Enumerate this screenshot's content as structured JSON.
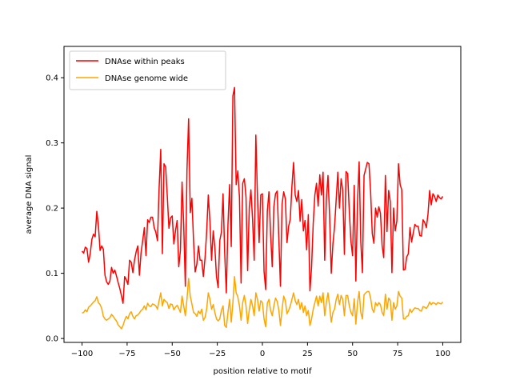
{
  "chart_data": {
    "type": "line",
    "title": "",
    "xlabel": "position relative to motif",
    "ylabel": "average DNA signal",
    "xlim": [
      -110,
      110
    ],
    "ylim": [
      -0.006,
      0.448
    ],
    "xticks": [
      -100,
      -75,
      -50,
      -25,
      0,
      25,
      50,
      75,
      100
    ],
    "yticks": [
      0.0,
      0.1,
      0.2,
      0.3,
      0.4
    ],
    "ytick_labels": [
      "0.0",
      "0.1",
      "0.2",
      "0.3",
      "0.4"
    ],
    "grid": false,
    "legend": "upper left",
    "x_start": -100,
    "x_step": 1,
    "series": [
      {
        "name": "DNAse within peaks",
        "color": "#ff0000",
        "values": [
          0.134,
          0.131,
          0.14,
          0.138,
          0.117,
          0.13,
          0.152,
          0.16,
          0.156,
          0.195,
          0.173,
          0.135,
          0.142,
          0.137,
          0.097,
          0.087,
          0.083,
          0.088,
          0.109,
          0.1,
          0.105,
          0.096,
          0.086,
          0.077,
          0.066,
          0.054,
          0.095,
          0.09,
          0.083,
          0.12,
          0.117,
          0.101,
          0.12,
          0.133,
          0.142,
          0.097,
          0.132,
          0.15,
          0.17,
          0.127,
          0.182,
          0.178,
          0.186,
          0.186,
          0.17,
          0.163,
          0.15,
          0.23,
          0.29,
          0.13,
          0.268,
          0.263,
          0.218,
          0.169,
          0.185,
          0.188,
          0.145,
          0.165,
          0.181,
          0.11,
          0.135,
          0.24,
          0.175,
          0.08,
          0.258,
          0.337,
          0.193,
          0.215,
          0.15,
          0.102,
          0.114,
          0.142,
          0.12,
          0.12,
          0.095,
          0.123,
          0.163,
          0.22,
          0.18,
          0.12,
          0.165,
          0.14,
          0.095,
          0.078,
          0.15,
          0.163,
          0.222,
          0.131,
          0.07,
          0.175,
          0.236,
          0.141,
          0.372,
          0.385,
          0.236,
          0.257,
          0.217,
          0.085,
          0.238,
          0.245,
          0.217,
          0.104,
          0.2,
          0.228,
          0.183,
          0.12,
          0.312,
          0.217,
          0.147,
          0.22,
          0.222,
          0.103,
          0.075,
          0.195,
          0.225,
          0.16,
          0.11,
          0.202,
          0.222,
          0.226,
          0.155,
          0.08,
          0.206,
          0.225,
          0.214,
          0.147,
          0.172,
          0.183,
          0.233,
          0.27,
          0.22,
          0.21,
          0.227,
          0.18,
          0.213,
          0.165,
          0.181,
          0.136,
          0.19,
          0.073,
          0.11,
          0.177,
          0.22,
          0.238,
          0.203,
          0.251,
          0.22,
          0.255,
          0.12,
          0.213,
          0.25,
          0.188,
          0.1,
          0.145,
          0.171,
          0.213,
          0.255,
          0.2,
          0.245,
          0.228,
          0.129,
          0.256,
          0.253,
          0.195,
          0.149,
          0.127,
          0.235,
          0.088,
          0.21,
          0.271,
          0.148,
          0.101,
          0.25,
          0.26,
          0.27,
          0.268,
          0.225,
          0.161,
          0.146,
          0.2,
          0.186,
          0.202,
          0.192,
          0.143,
          0.124,
          0.25,
          0.164,
          0.227,
          0.21,
          0.101,
          0.2,
          0.165,
          0.18,
          0.268,
          0.236,
          0.228,
          0.105,
          0.106,
          0.125,
          0.13,
          0.17,
          0.148,
          0.162,
          0.175,
          0.172,
          0.172,
          0.158,
          0.157,
          0.182,
          0.178,
          0.17,
          0.191,
          0.227,
          0.205,
          0.222,
          0.218,
          0.21,
          0.22,
          0.216,
          0.214,
          0.218
        ],
        "note_x_density": "values are sampled uniformly over the x range [-100, 100]"
      },
      {
        "name": "DNAse genome wide",
        "color": "#ffa500",
        "values": [
          0.039,
          0.04,
          0.044,
          0.041,
          0.048,
          0.05,
          0.053,
          0.056,
          0.058,
          0.064,
          0.055,
          0.052,
          0.046,
          0.034,
          0.03,
          0.028,
          0.03,
          0.032,
          0.037,
          0.034,
          0.03,
          0.027,
          0.021,
          0.018,
          0.015,
          0.02,
          0.028,
          0.034,
          0.03,
          0.038,
          0.041,
          0.034,
          0.03,
          0.035,
          0.036,
          0.039,
          0.043,
          0.045,
          0.05,
          0.044,
          0.054,
          0.05,
          0.049,
          0.053,
          0.052,
          0.05,
          0.045,
          0.058,
          0.07,
          0.05,
          0.06,
          0.057,
          0.055,
          0.046,
          0.053,
          0.052,
          0.044,
          0.048,
          0.051,
          0.046,
          0.04,
          0.065,
          0.05,
          0.035,
          0.06,
          0.092,
          0.065,
          0.053,
          0.04,
          0.038,
          0.034,
          0.042,
          0.038,
          0.045,
          0.028,
          0.032,
          0.045,
          0.07,
          0.06,
          0.045,
          0.052,
          0.04,
          0.03,
          0.027,
          0.03,
          0.043,
          0.05,
          0.02,
          0.017,
          0.04,
          0.06,
          0.025,
          0.055,
          0.095,
          0.07,
          0.064,
          0.05,
          0.028,
          0.055,
          0.066,
          0.05,
          0.023,
          0.044,
          0.06,
          0.05,
          0.035,
          0.07,
          0.06,
          0.042,
          0.058,
          0.055,
          0.03,
          0.018,
          0.054,
          0.06,
          0.043,
          0.035,
          0.05,
          0.062,
          0.057,
          0.044,
          0.02,
          0.045,
          0.065,
          0.058,
          0.038,
          0.043,
          0.05,
          0.06,
          0.07,
          0.058,
          0.052,
          0.06,
          0.045,
          0.055,
          0.04,
          0.05,
          0.035,
          0.043,
          0.02,
          0.03,
          0.045,
          0.055,
          0.065,
          0.05,
          0.065,
          0.055,
          0.07,
          0.035,
          0.055,
          0.07,
          0.05,
          0.025,
          0.04,
          0.045,
          0.06,
          0.068,
          0.052,
          0.066,
          0.06,
          0.035,
          0.066,
          0.066,
          0.05,
          0.04,
          0.035,
          0.061,
          0.022,
          0.055,
          0.072,
          0.04,
          0.03,
          0.067,
          0.07,
          0.072,
          0.072,
          0.062,
          0.045,
          0.04,
          0.055,
          0.05,
          0.055,
          0.052,
          0.04,
          0.035,
          0.068,
          0.045,
          0.062,
          0.058,
          0.028,
          0.055,
          0.045,
          0.05,
          0.072,
          0.065,
          0.062,
          0.03,
          0.03,
          0.034,
          0.035,
          0.045,
          0.04,
          0.044,
          0.047,
          0.046,
          0.046,
          0.043,
          0.042,
          0.049,
          0.048,
          0.046,
          0.05,
          0.056,
          0.052,
          0.055,
          0.054,
          0.052,
          0.055,
          0.054,
          0.053,
          0.056
        ]
      }
    ]
  }
}
